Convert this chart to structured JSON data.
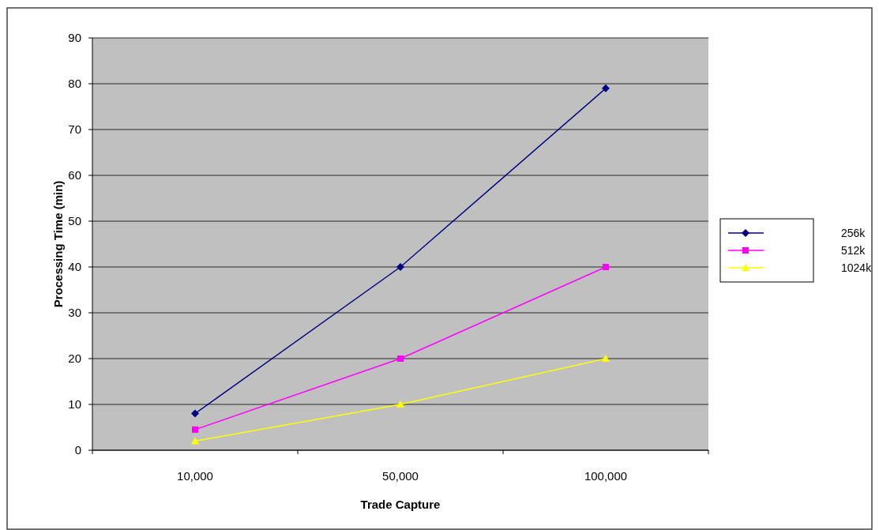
{
  "chart_data": {
    "type": "line",
    "xlabel": "Trade Capture",
    "ylabel": "Processing  Time (min)",
    "categories": [
      "10,000",
      "50,000",
      "100,000"
    ],
    "series": [
      {
        "name": "256k",
        "color": "#000080",
        "values": [
          8,
          40,
          79
        ],
        "marker": "diamond"
      },
      {
        "name": "512k",
        "color": "#ff00ff",
        "values": [
          4.5,
          20,
          40
        ],
        "marker": "square"
      },
      {
        "name": "1024k",
        "color": "#ffff00",
        "values": [
          2,
          10,
          20
        ],
        "marker": "triangle"
      }
    ],
    "ylim": [
      0,
      90
    ],
    "yticks": [
      0,
      10,
      20,
      30,
      40,
      50,
      60,
      70,
      80,
      90
    ],
    "grid": "y",
    "legend": "right"
  }
}
